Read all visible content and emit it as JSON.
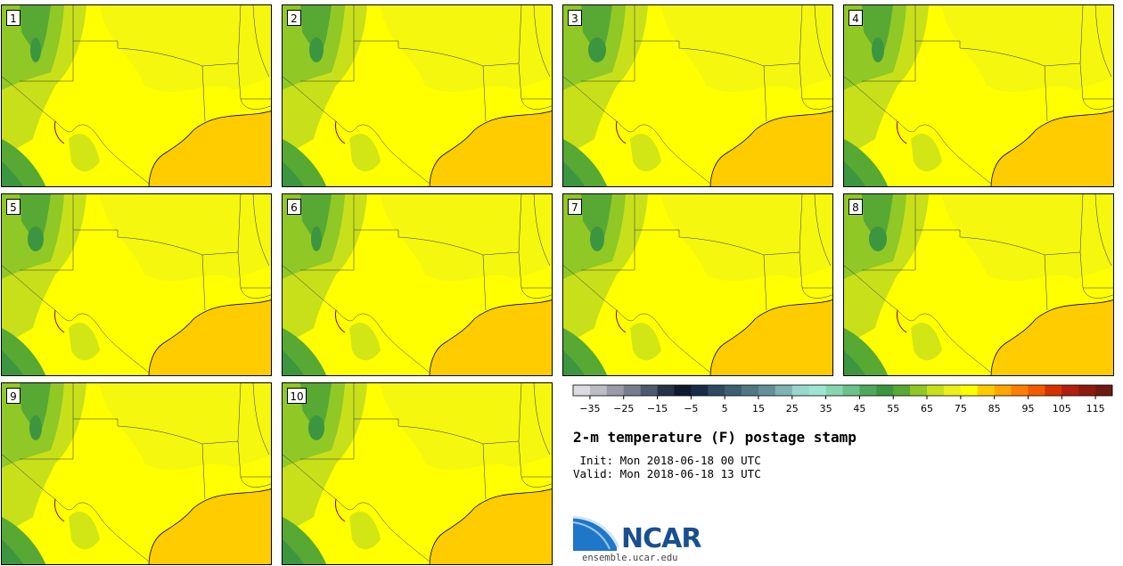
{
  "title": "2-m temperature (F) postage stamp",
  "init_text": " Init: Mon 2018-06-18 00 UTC",
  "valid_text": "Valid: Mon 2018-06-18 13 UTC",
  "logo": {
    "name": "NCAR",
    "url": "ensemble.ucar.edu"
  },
  "members": [
    "1",
    "2",
    "3",
    "4",
    "5",
    "6",
    "7",
    "8",
    "9",
    "10"
  ],
  "colorbar": {
    "colors": [
      "#dcdce0",
      "#bdbdc6",
      "#9a9aa8",
      "#767e8e",
      "#4e5a6e",
      "#263246",
      "#0f1a2e",
      "#172c48",
      "#2d4a62",
      "#3d6072",
      "#517883",
      "#669098",
      "#7fb2b2",
      "#98d6ce",
      "#9ee6d2",
      "#88d6b0",
      "#6cc28a",
      "#50a85c",
      "#3c9640",
      "#58a834",
      "#90c826",
      "#c8e01a",
      "#ecf01a",
      "#ffff00",
      "#ffcc00",
      "#ffa600",
      "#ff7f00",
      "#f45a00",
      "#d63200",
      "#b21e10",
      "#8e1a0e",
      "#6e1a0e"
    ],
    "tick_labels": [
      "−35",
      "−25",
      "−15",
      "−5",
      "5",
      "15",
      "25",
      "35",
      "45",
      "55",
      "65",
      "75",
      "85",
      "95",
      "105",
      "115"
    ],
    "vmin": -40,
    "vmax": 120,
    "tick_start": -35,
    "tick_step": 10
  },
  "palette": {
    "land_hot": "#ffff00",
    "land_mild": "#ecf01a",
    "land_cool": "#c8e01a",
    "highland": "#90c826",
    "mountain": "#58a834",
    "peak": "#3c9640",
    "gulf": "#ffcc00",
    "border": "#333333"
  }
}
